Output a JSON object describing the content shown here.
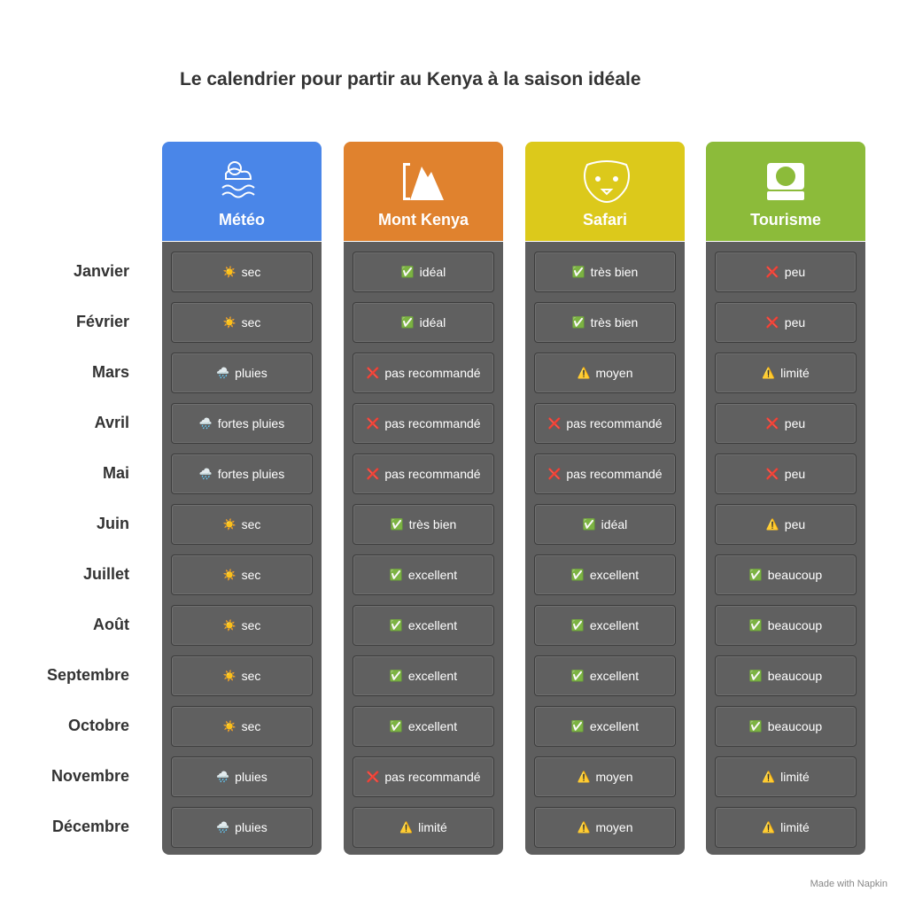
{
  "title": "Le calendrier pour partir au Kenya à la saison idéale",
  "columns": [
    {
      "name": "Météo",
      "color": "#4a86e8"
    },
    {
      "name": "Mont Kenya",
      "color": "#e0822e"
    },
    {
      "name": "Safari",
      "color": "#dcc91b"
    },
    {
      "name": "Tourisme",
      "color": "#8cbb3a"
    }
  ],
  "rows": [
    {
      "label": "Janvier",
      "cells": [
        {
          "icon": "☀️",
          "text": "sec"
        },
        {
          "icon": "✅",
          "text": "idéal"
        },
        {
          "icon": "✅",
          "text": "très bien"
        },
        {
          "icon": "❌",
          "text": "peu"
        }
      ]
    },
    {
      "label": "Février",
      "cells": [
        {
          "icon": "☀️",
          "text": "sec"
        },
        {
          "icon": "✅",
          "text": "idéal"
        },
        {
          "icon": "✅",
          "text": "très bien"
        },
        {
          "icon": "❌",
          "text": "peu"
        }
      ]
    },
    {
      "label": "Mars",
      "cells": [
        {
          "icon": "🌧️",
          "text": "pluies"
        },
        {
          "icon": "❌",
          "text": "pas recommandé"
        },
        {
          "icon": "⚠️",
          "text": "moyen"
        },
        {
          "icon": "⚠️",
          "text": "limité"
        }
      ]
    },
    {
      "label": "Avril",
      "cells": [
        {
          "icon": "🌧️",
          "text": "fortes pluies"
        },
        {
          "icon": "❌",
          "text": "pas recommandé"
        },
        {
          "icon": "❌",
          "text": "pas recommandé"
        },
        {
          "icon": "❌",
          "text": "peu"
        }
      ]
    },
    {
      "label": "Mai",
      "cells": [
        {
          "icon": "🌧️",
          "text": "fortes pluies"
        },
        {
          "icon": "❌",
          "text": "pas recommandé"
        },
        {
          "icon": "❌",
          "text": "pas recommandé"
        },
        {
          "icon": "❌",
          "text": "peu"
        }
      ]
    },
    {
      "label": "Juin",
      "cells": [
        {
          "icon": "☀️",
          "text": "sec"
        },
        {
          "icon": "✅",
          "text": "très bien"
        },
        {
          "icon": "✅",
          "text": "idéal"
        },
        {
          "icon": "⚠️",
          "text": "peu"
        }
      ]
    },
    {
      "label": "Juillet",
      "cells": [
        {
          "icon": "☀️",
          "text": "sec"
        },
        {
          "icon": "✅",
          "text": "excellent"
        },
        {
          "icon": "✅",
          "text": "excellent"
        },
        {
          "icon": "✅",
          "text": "beaucoup"
        }
      ]
    },
    {
      "label": "Août",
      "cells": [
        {
          "icon": "☀️",
          "text": "sec"
        },
        {
          "icon": "✅",
          "text": "excellent"
        },
        {
          "icon": "✅",
          "text": "excellent"
        },
        {
          "icon": "✅",
          "text": "beaucoup"
        }
      ]
    },
    {
      "label": "Septembre",
      "cells": [
        {
          "icon": "☀️",
          "text": "sec"
        },
        {
          "icon": "✅",
          "text": "excellent"
        },
        {
          "icon": "✅",
          "text": "excellent"
        },
        {
          "icon": "✅",
          "text": "beaucoup"
        }
      ]
    },
    {
      "label": "Octobre",
      "cells": [
        {
          "icon": "☀️",
          "text": "sec"
        },
        {
          "icon": "✅",
          "text": "excellent"
        },
        {
          "icon": "✅",
          "text": "excellent"
        },
        {
          "icon": "✅",
          "text": "beaucoup"
        }
      ]
    },
    {
      "label": "Novembre",
      "cells": [
        {
          "icon": "🌧️",
          "text": "pluies"
        },
        {
          "icon": "❌",
          "text": "pas recommandé"
        },
        {
          "icon": "⚠️",
          "text": "moyen"
        },
        {
          "icon": "⚠️",
          "text": "limité"
        }
      ]
    },
    {
      "label": "Décembre",
      "cells": [
        {
          "icon": "🌧️",
          "text": "pluies"
        },
        {
          "icon": "⚠️",
          "text": "limité"
        },
        {
          "icon": "⚠️",
          "text": "moyen"
        },
        {
          "icon": "⚠️",
          "text": "limité"
        }
      ]
    }
  ],
  "footer": "Made with Napkin"
}
